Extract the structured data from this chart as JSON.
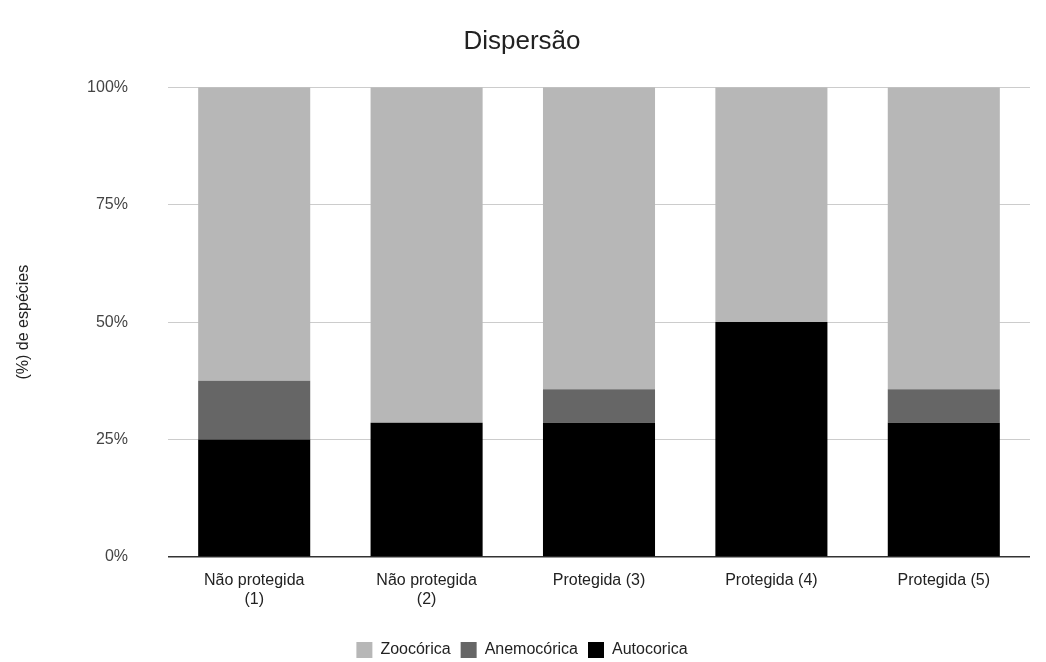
{
  "chart_data": {
    "type": "bar",
    "title": "Dispersão",
    "ylabel": "(%) de espécies",
    "categories": [
      "Não protegida (1)",
      "Não protegida (2)",
      "Protegida (3)",
      "Protegida (4)",
      "Protegida (5)"
    ],
    "stacked": true,
    "series": [
      {
        "name": "Autocorica",
        "color": "#000000",
        "values": [
          25,
          28.6,
          28.6,
          50,
          28.6
        ]
      },
      {
        "name": "Anemocórica",
        "color": "#666666",
        "values": [
          12.5,
          0,
          7.1,
          0,
          7.1
        ]
      },
      {
        "name": "Zoocórica",
        "color": "#b7b7b7",
        "values": [
          62.5,
          71.4,
          64.3,
          50,
          64.3
        ]
      }
    ],
    "ylim": [
      0,
      100
    ],
    "yticks": [
      {
        "value": 0,
        "label": "0%"
      },
      {
        "value": 25,
        "label": "25%"
      },
      {
        "value": 50,
        "label": "50%"
      },
      {
        "value": 75,
        "label": "75%"
      },
      {
        "value": 100,
        "label": "100%"
      }
    ],
    "grid": "y",
    "legend": "bottom"
  }
}
